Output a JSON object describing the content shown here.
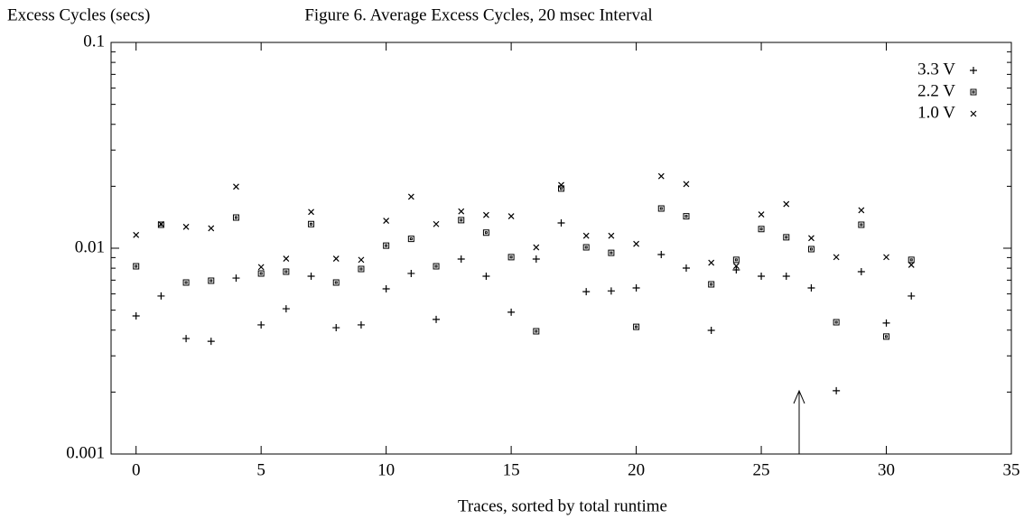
{
  "chart_data": {
    "type": "scatter",
    "title": "Figure 6. Average Excess Cycles, 20 msec Interval",
    "y_label": "Excess Cycles (secs)",
    "x_label": "Traces, sorted by total runtime",
    "xlim": [
      -1,
      35
    ],
    "xticks": [
      0,
      5,
      10,
      15,
      20,
      25,
      30,
      35
    ],
    "ylim": [
      0.001,
      0.1
    ],
    "yticks": [
      0.001,
      0.01,
      0.1
    ],
    "log_y": true,
    "legend": "top-right",
    "x": [
      0,
      1,
      2,
      3,
      4,
      5,
      6,
      7,
      8,
      9,
      10,
      11,
      12,
      13,
      14,
      15,
      16,
      17,
      18,
      19,
      20,
      21,
      22,
      23,
      24,
      25,
      26,
      27,
      28,
      29,
      30,
      31
    ],
    "series": [
      {
        "name": "3.3 V",
        "color": "#000000",
        "marker": "plus",
        "values": [
          0.00469,
          0.00586,
          0.00364,
          0.00353,
          0.00716,
          0.00424,
          0.00508,
          0.00731,
          0.00411,
          0.00424,
          0.00635,
          0.00754,
          0.00451,
          0.00886,
          0.00731,
          0.00489,
          0.00886,
          0.01327,
          0.00615,
          0.0062,
          0.00641,
          0.00932,
          0.00801,
          0.00399,
          0.00785,
          0.00731,
          0.00731,
          0.00641,
          0.00203,
          0.00769,
          0.00433,
          0.00586
        ]
      },
      {
        "name": "2.2 V",
        "color": "#000000",
        "marker": "square",
        "values": [
          0.00817,
          0.013,
          0.00681,
          0.00695,
          0.0141,
          0.00754,
          0.00769,
          0.0131,
          0.00681,
          0.00793,
          0.0103,
          0.0111,
          0.00817,
          0.0137,
          0.0119,
          0.00905,
          0.00395,
          0.0195,
          0.0101,
          0.0095,
          0.00415,
          0.0156,
          0.0143,
          0.00668,
          0.00878,
          0.0124,
          0.0113,
          0.0099,
          0.00437,
          0.013,
          0.00372,
          0.00878
        ]
      },
      {
        "name": "1.0 V",
        "color": "#000000",
        "marker": "cross",
        "values": [
          0.0116,
          0.0131,
          0.0127,
          0.0125,
          0.0199,
          0.0081,
          0.0089,
          0.015,
          0.0089,
          0.00878,
          0.0136,
          0.0178,
          0.0131,
          0.0151,
          0.0145,
          0.0143,
          0.0101,
          0.0203,
          0.0115,
          0.0115,
          0.0105,
          0.0224,
          0.0205,
          0.0085,
          0.0082,
          0.0146,
          0.0164,
          0.0112,
          0.00905,
          0.0153,
          0.00905,
          0.0083
        ]
      }
    ]
  }
}
